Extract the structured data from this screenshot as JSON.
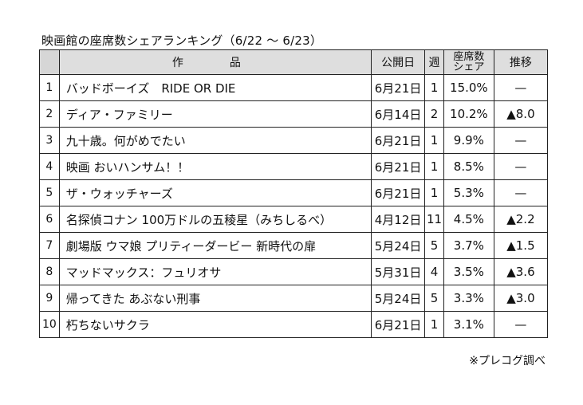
{
  "title": "映画館の座席数シェアランキング（6/22 ～ 6/23）",
  "headers": {
    "rank": "",
    "title": "作　品",
    "date": "公開日",
    "week": "週",
    "share_line1": "座席数",
    "share_line2": "シェア",
    "move": "推移"
  },
  "rows": [
    {
      "rank": "1",
      "title": "バッドボーイズ　RIDE OR DIE",
      "date": "6月21日",
      "week": "1",
      "share": "15.0%",
      "move": "—"
    },
    {
      "rank": "2",
      "title": "ディア・ファミリー",
      "date": "6月14日",
      "week": "2",
      "share": "10.2%",
      "move": "▲8.0"
    },
    {
      "rank": "3",
      "title": "九十歳。何がめでたい",
      "date": "6月21日",
      "week": "1",
      "share": "9.9%",
      "move": "—"
    },
    {
      "rank": "4",
      "title": "映画 おいハンサム！！",
      "date": "6月21日",
      "week": "1",
      "share": "8.5%",
      "move": "—"
    },
    {
      "rank": "5",
      "title": "ザ・ウォッチャーズ",
      "date": "6月21日",
      "week": "1",
      "share": "5.3%",
      "move": "—"
    },
    {
      "rank": "6",
      "title": "名探偵コナン 100万ドルの五稜星（みちしるべ）",
      "date": "4月12日",
      "week": "11",
      "share": "4.5%",
      "move": "▲2.2"
    },
    {
      "rank": "7",
      "title": "劇場版 ウマ娘 プリティーダービー 新時代の扉",
      "date": "5月24日",
      "week": "5",
      "share": "3.7%",
      "move": "▲1.5"
    },
    {
      "rank": "8",
      "title": "マッドマックス：フュリオサ",
      "date": "5月31日",
      "week": "4",
      "share": "3.5%",
      "move": "▲3.6"
    },
    {
      "rank": "9",
      "title": "帰ってきた あぶない刑事",
      "date": "5月24日",
      "week": "5",
      "share": "3.3%",
      "move": "▲3.0"
    },
    {
      "rank": "10",
      "title": "朽ちないサクラ",
      "date": "6月21日",
      "week": "1",
      "share": "3.1%",
      "move": "—"
    }
  ],
  "note": "※プレコグ調べ"
}
